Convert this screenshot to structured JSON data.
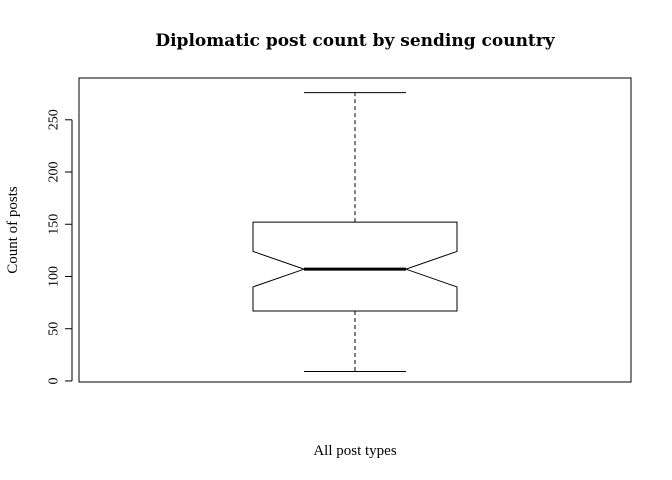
{
  "chart_data": {
    "type": "boxplot",
    "title": "Diplomatic post count by sending country",
    "xlabel": "All post types",
    "ylabel": "Count of posts",
    "y_ticks": [
      0,
      50,
      100,
      150,
      200,
      250
    ],
    "y_tick_labels": [
      "0",
      "50",
      "100",
      "150",
      "200",
      "250"
    ],
    "ylim": [
      -1,
      290
    ],
    "notched": true,
    "grid": false,
    "box": {
      "min": 9,
      "q1": 67,
      "median": 107,
      "q3": 152,
      "max": 276,
      "notch_low": 90,
      "notch_high": 124
    }
  }
}
